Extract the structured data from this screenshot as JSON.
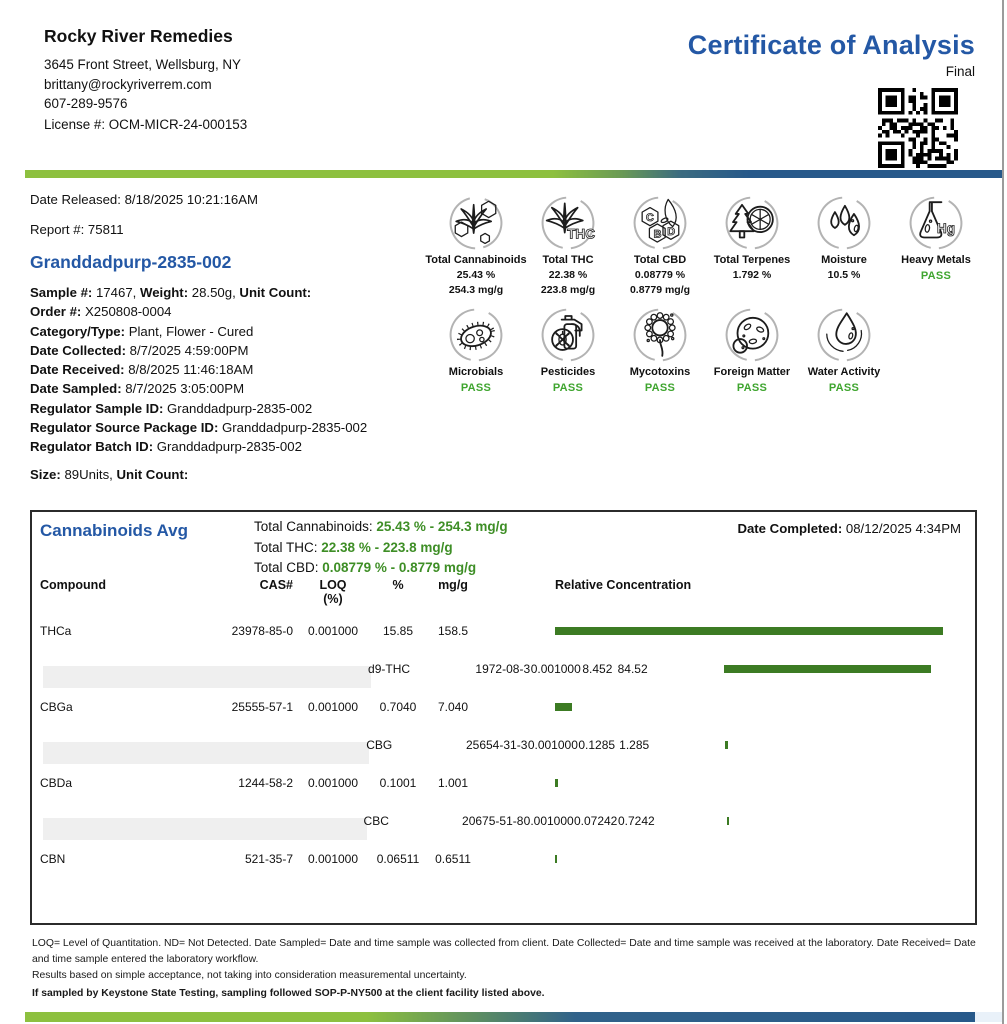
{
  "lab": {
    "name": "Rocky River Remedies",
    "address": "3645 Front Street, Wellsburg, NY",
    "email": "brittany@rockyriverrem.com",
    "phone": "607-289-9576",
    "license": "License #: OCM-MICR-24-000153"
  },
  "header": {
    "title": "Certificate of Analysis",
    "status": "Final"
  },
  "meta": {
    "date_released": "Date Released: 8/18/2025  10:21:16AM",
    "report_number": "Report #: 75811"
  },
  "sample": {
    "name": "Granddadpurp-2835-002",
    "details": [
      [
        {
          "t": "Sample #:",
          "b": true
        },
        {
          "t": " 17467, "
        },
        {
          "t": "Weight:",
          "b": true
        },
        {
          "t": " 28.50g, "
        },
        {
          "t": "Unit Count:",
          "b": true
        }
      ],
      [
        {
          "t": "Order #:",
          "b": true
        },
        {
          "t": " X250808-0004"
        }
      ],
      [
        {
          "t": "Category/Type:",
          "b": true
        },
        {
          "t": " Plant, Flower - Cured"
        }
      ],
      [
        {
          "t": "Date Collected:",
          "b": true
        },
        {
          "t": " 8/7/2025   4:59:00PM"
        }
      ],
      [
        {
          "t": "Date Received:",
          "b": true
        },
        {
          "t": " 8/8/2025  11:46:18AM"
        }
      ],
      [
        {
          "t": "Date Sampled:",
          "b": true
        },
        {
          "t": " 8/7/2025   3:05:00PM"
        }
      ],
      [
        {
          "t": "Regulator Sample ID:",
          "b": true
        },
        {
          "t": " Granddadpurp-2835-002"
        }
      ],
      [
        {
          "t": "Regulator Source Package ID:",
          "b": true
        },
        {
          "t": " Granddadpurp-2835-002"
        }
      ],
      [
        {
          "t": "Regulator Batch ID:",
          "b": true
        },
        {
          "t": " Granddadpurp-2835-002"
        }
      ]
    ],
    "size_line": [
      {
        "t": "Size:",
        "b": true
      },
      {
        "t": " 89Units, "
      },
      {
        "t": "Unit Count:",
        "b": true
      }
    ]
  },
  "badges": [
    {
      "icon": "cannabinoids",
      "label": "Total Cannabinoids",
      "values": [
        "25.43 %",
        "254.3 mg/g"
      ]
    },
    {
      "icon": "thc",
      "label": "Total THC",
      "values": [
        "22.38 %",
        "223.8 mg/g"
      ]
    },
    {
      "icon": "cbd",
      "label": "Total CBD",
      "values": [
        "0.08779 %",
        "0.8779 mg/g"
      ]
    },
    {
      "icon": "terpenes",
      "label": "Total Terpenes",
      "values": [
        "1.792 %"
      ]
    },
    {
      "icon": "moisture",
      "label": "Moisture",
      "values": [
        "10.5 %"
      ]
    },
    {
      "icon": "heavy-metals",
      "label": "Heavy Metals",
      "pass": "PASS"
    },
    {
      "icon": "microbials",
      "label": "Microbials",
      "pass": "PASS"
    },
    {
      "icon": "pesticides",
      "label": "Pesticides",
      "pass": "PASS"
    },
    {
      "icon": "mycotoxins",
      "label": "Mycotoxins",
      "pass": "PASS"
    },
    {
      "icon": "foreign-matter",
      "label": "Foreign Matter",
      "pass": "PASS"
    },
    {
      "icon": "water-activity",
      "label": "Water Activity",
      "pass": "PASS"
    }
  ],
  "cannabinoids": {
    "section_title": "Cannabinoids Avg",
    "totals": [
      {
        "label": "Total Cannabinoids: ",
        "value": "25.43 % - 254.3 mg/g"
      },
      {
        "label": "Total THC: ",
        "value": "22.38 % - 223.8 mg/g"
      },
      {
        "label": "Total CBD: ",
        "value": "0.08779 % - 0.8779 mg/g"
      }
    ],
    "date_completed_label": "Date Completed:",
    "date_completed_value": " 08/12/2025   4:34PM",
    "table": {
      "headers": {
        "compound": "Compound",
        "cas": "CAS#",
        "loq1": "LOQ",
        "loq2": "(%)",
        "pct": "%",
        "mgg": "mg/g",
        "rel": "Relative Concentration"
      },
      "max_pct": 15.85,
      "rows": [
        {
          "compound": "THCa",
          "cas": "23978-85-0",
          "loq": "0.001000",
          "pct": 15.85,
          "pct_text": "15.85",
          "mgg": "158.5"
        },
        {
          "compound": "d9-THC",
          "cas": "1972-08-3",
          "loq": "0.001000",
          "pct": 8.452,
          "pct_text": "8.452",
          "mgg": "84.52"
        },
        {
          "compound": "CBGa",
          "cas": "25555-57-1",
          "loq": "0.001000",
          "pct": 0.704,
          "pct_text": "0.7040",
          "mgg": "7.040"
        },
        {
          "compound": "CBG",
          "cas": "25654-31-3",
          "loq": "0.001000",
          "pct": 0.1285,
          "pct_text": "0.1285",
          "mgg": "1.285"
        },
        {
          "compound": "CBDa",
          "cas": "1244-58-2",
          "loq": "0.001000",
          "pct": 0.1001,
          "pct_text": "0.1001",
          "mgg": "1.001"
        },
        {
          "compound": "CBC",
          "cas": "20675-51-8",
          "loq": "0.001000",
          "pct": 0.07242,
          "pct_text": "0.07242",
          "mgg": "0.7242"
        },
        {
          "compound": "CBN",
          "cas": "521-35-7",
          "loq": "0.001000",
          "pct": 0.06511,
          "pct_text": "0.06511",
          "mgg": "0.6511"
        }
      ]
    }
  },
  "footnotes": [
    "LOQ= Level of Quantitation. ND= Not Detected. Date Sampled= Date and time sample was collected from client. Date Collected= Date and time sample was received at the laboratory. Date Received= Date and time sample entered the laboratory workflow.",
    "Results based on simple acceptance, not taking into consideration measuremental uncertainty.",
    "If sampled by Keystone State Testing, sampling followed SOP-P-NY500 at the client facility listed above."
  ],
  "colors": {
    "accent_blue": "#2458A5",
    "divider_green": "#8dc03f",
    "divider_blue": "#27598a",
    "bar_green": "#3C7B23",
    "totals_green": "#3E8E26",
    "pass_green": "#3FA52F"
  }
}
